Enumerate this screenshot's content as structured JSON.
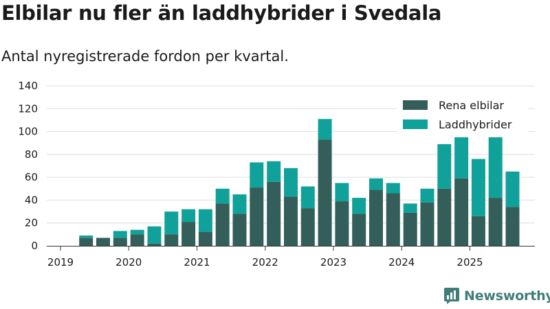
{
  "title": "Elbilar nu fler än laddhybrider i Svedala",
  "subtitle": "Antal nyregistrerade fordon per kvartal.",
  "brand": "Newsworthy",
  "colors": {
    "electric": "#335e59",
    "hybrid": "#10a19a",
    "grid": "#dddddd",
    "brand": "#3f7d78"
  },
  "chart_data": {
    "type": "bar",
    "stacked": true,
    "title": "Elbilar nu fler än laddhybrider i Svedala",
    "subtitle": "Antal nyregistrerade fordon per kvartal.",
    "xlabel": "",
    "ylabel": "",
    "ylim": [
      0,
      140
    ],
    "yticks": [
      "0",
      "20",
      "40",
      "60",
      "80",
      "100",
      "120",
      "140"
    ],
    "xticks": [
      "2019",
      "2020",
      "2021",
      "2022",
      "2023",
      "2024",
      "2025"
    ],
    "grid": true,
    "legend_position": "top-right",
    "categories": [
      "2019 Q2",
      "2019 Q3",
      "2019 Q4",
      "2020 Q1",
      "2020 Q2",
      "2020 Q3",
      "2020 Q4",
      "2021 Q1",
      "2021 Q2",
      "2021 Q3",
      "2021 Q4",
      "2022 Q1",
      "2022 Q2",
      "2022 Q3",
      "2022 Q4",
      "2023 Q1",
      "2023 Q2",
      "2023 Q3",
      "2023 Q4",
      "2024 Q1",
      "2024 Q2",
      "2024 Q3",
      "2024 Q4",
      "2025 Q1",
      "2025 Q2",
      "2025 Q3"
    ],
    "series": [
      {
        "name": "Rena elbilar",
        "values": [
          7,
          7,
          7,
          10,
          2,
          10,
          21,
          12,
          37,
          28,
          51,
          56,
          43,
          33,
          93,
          39,
          28,
          49,
          46,
          29,
          38,
          50,
          59,
          26,
          42,
          34
        ]
      },
      {
        "name": "Laddhybrider",
        "values": [
          2,
          0,
          6,
          4,
          15,
          20,
          11,
          20,
          13,
          17,
          22,
          18,
          25,
          19,
          18,
          16,
          14,
          10,
          9,
          8,
          12,
          39,
          36,
          50,
          53,
          31
        ]
      }
    ]
  }
}
